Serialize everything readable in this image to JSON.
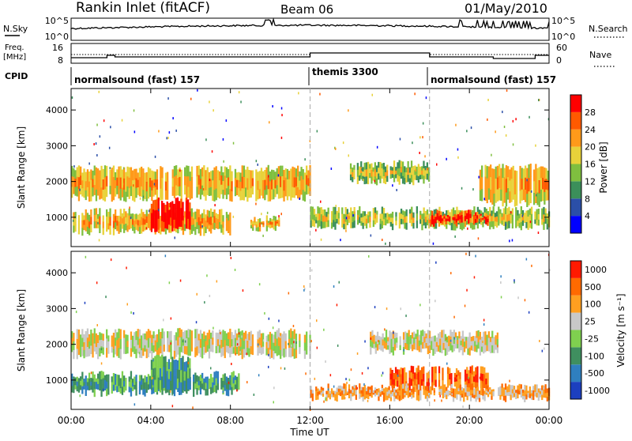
{
  "header": {
    "station": "Rankin Inlet (fitACF)",
    "beam": "Beam 06",
    "date": "01/May/2010"
  },
  "top_panels": {
    "nsky_label": "N.Sky",
    "nsky_ticks": [
      "10^5",
      "10^0"
    ],
    "nsearch_label": "N.Search",
    "freq_label_line1": "Freq.",
    "freq_label_line2": "[MHz]",
    "freq_ticks": [
      "16",
      "8"
    ],
    "nave_label": "Nave",
    "nave_ticks": [
      "60",
      "0"
    ],
    "cpid_label": "CPID",
    "cpid_segments": [
      {
        "label": "normalsound (fast) 157",
        "start_hour": 0
      },
      {
        "label": "themis 3300",
        "start_hour": 12
      },
      {
        "label": "normalsound (fast) 157",
        "start_hour": 18
      }
    ]
  },
  "chart_data": [
    {
      "type": "heatmap",
      "panel": "power",
      "ylabel": "Slant Range [km]",
      "ylim": [
        180,
        4600
      ],
      "yticks": [
        1000,
        2000,
        3000,
        4000
      ],
      "xlim": [
        0,
        24
      ],
      "xticks": [
        "00:00",
        "04:00",
        "08:00",
        "12:00",
        "16:00",
        "20:00",
        "00:00"
      ],
      "colorbar": {
        "label": "Power [dB]",
        "ticks": [
          "28",
          "24",
          "20",
          "16",
          "12",
          "8",
          "4"
        ],
        "colors": [
          "#0000ff",
          "#2b4fa8",
          "#3b8f5a",
          "#7fbf3f",
          "#e8d23a",
          "#ff9a1a",
          "#ff5a00",
          "#ff0000"
        ]
      },
      "regions": [
        {
          "t0": 0.0,
          "t1": 12.0,
          "r0": 1550,
          "r1": 2350,
          "level": 4,
          "desc": "band"
        },
        {
          "t0": 0.0,
          "t1": 8.0,
          "r0": 600,
          "r1": 1150,
          "level": 4
        },
        {
          "t0": 4.0,
          "t1": 6.0,
          "r0": 700,
          "r1": 1450,
          "level": 7
        },
        {
          "t0": 9.0,
          "t1": 10.5,
          "r0": 700,
          "r1": 950,
          "level": 4
        },
        {
          "t0": 12.0,
          "t1": 24.0,
          "r0": 750,
          "r1": 1200,
          "level": 3
        },
        {
          "t0": 18.0,
          "t1": 21.0,
          "r0": 850,
          "r1": 1100,
          "level": 6
        },
        {
          "t0": 14.0,
          "t1": 18.0,
          "r0": 2000,
          "r1": 2500,
          "level": 3
        },
        {
          "t0": 20.5,
          "t1": 24.0,
          "r0": 1400,
          "r1": 2400,
          "level": 4
        }
      ]
    },
    {
      "type": "heatmap",
      "panel": "velocity",
      "ylabel": "Slant Range [km]",
      "ylim": [
        180,
        4600
      ],
      "yticks": [
        1000,
        2000,
        3000,
        4000
      ],
      "xlim": [
        0,
        24
      ],
      "xticks": [
        "00:00",
        "04:00",
        "08:00",
        "12:00",
        "16:00",
        "20:00",
        "00:00"
      ],
      "xlabel": "Time UT",
      "colorbar": {
        "label": "Velocity [m s⁻¹]",
        "ticks": [
          "1000",
          "500",
          "100",
          "25",
          "-25",
          "-100",
          "-500",
          "-1000"
        ],
        "colors": [
          "#1c3fbf",
          "#2f7fbf",
          "#3f8f5f",
          "#7fd04f",
          "#c8c8c8",
          "#ff9f20",
          "#ff6a00",
          "#ff1a00"
        ]
      },
      "regions": [
        {
          "t0": 0.0,
          "t1": 12.0,
          "r0": 1700,
          "r1": 2350,
          "level": 4
        },
        {
          "t0": 0.0,
          "t1": 8.5,
          "r0": 650,
          "r1": 1150,
          "level": 2
        },
        {
          "t0": 4.0,
          "t1": 6.0,
          "r0": 700,
          "r1": 1600,
          "level": 2
        },
        {
          "t0": 15.0,
          "t1": 21.5,
          "r0": 1800,
          "r1": 2300,
          "level": 4
        },
        {
          "t0": 16.0,
          "t1": 21.0,
          "r0": 750,
          "r1": 1300,
          "level": 6
        },
        {
          "t0": 12.0,
          "t1": 24.0,
          "r0": 500,
          "r1": 800,
          "level": 5
        }
      ]
    }
  ]
}
